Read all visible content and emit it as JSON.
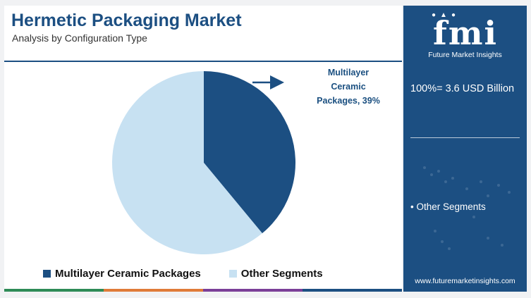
{
  "header": {
    "title": "Hermetic Packaging Market",
    "subtitle": "Analysis by Configuration Type"
  },
  "chart_data": {
    "type": "pie",
    "title": "Hermetic Packaging Market",
    "subtitle": "Analysis by Configuration Type",
    "slices": [
      {
        "label": "Multilayer Ceramic Packages",
        "value": 39,
        "color": "#1c4f82"
      },
      {
        "label": "Other Segments",
        "value": 61,
        "color": "#c7e1f2"
      }
    ],
    "annotation": "Multilayer Ceramic Packages, 39%",
    "legend_position": "bottom"
  },
  "callout": {
    "line1": "Multilayer",
    "line2": "Ceramic",
    "line3": "Packages, 39%"
  },
  "legend": {
    "items": [
      {
        "label": "Multilayer Ceramic Packages",
        "color": "#1c4f82"
      },
      {
        "label": "Other Segments",
        "color": "#c7e1f2"
      }
    ]
  },
  "sidebar": {
    "logo_text": "fmi",
    "logo_tagline": "Future Market Insights",
    "total": "100%= 3.6 USD Billion",
    "segment": "• Other Segments",
    "url": "www.futuremarketinsights.com"
  },
  "colors": {
    "accent": "#1c4f82",
    "light": "#c7e1f2",
    "bar": [
      "#2e8b57",
      "#e07b39",
      "#7b3f98",
      "#1c4f82"
    ]
  }
}
